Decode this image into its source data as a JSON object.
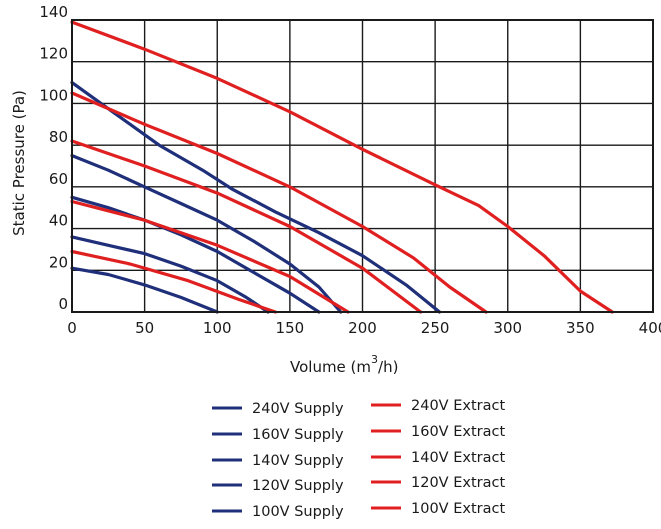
{
  "chart_data": {
    "type": "line",
    "xlabel": "Volume (m",
    "xlabel_sup": "3",
    "xlabel_suffix": "/h)",
    "ylabel": "Static Pressure (Pa)",
    "xlim": [
      0,
      400
    ],
    "ylim": [
      0,
      140
    ],
    "xticks": [
      0,
      50,
      100,
      150,
      200,
      250,
      300,
      350,
      400
    ],
    "yticks": [
      0,
      20,
      40,
      60,
      80,
      100,
      120,
      140
    ],
    "grid": true,
    "legend_position": "bottom",
    "colors": {
      "supply": "#1f2f7a",
      "extract": "#e02020"
    },
    "series": [
      {
        "name": "240V Supply",
        "group": "supply",
        "points": [
          [
            0,
            110
          ],
          [
            30,
            95
          ],
          [
            60,
            80
          ],
          [
            90,
            68
          ],
          [
            110,
            59
          ],
          [
            140,
            48
          ],
          [
            170,
            38
          ],
          [
            200,
            27
          ],
          [
            230,
            13
          ],
          [
            253,
            0
          ]
        ]
      },
      {
        "name": "160V Supply",
        "group": "supply",
        "points": [
          [
            0,
            75
          ],
          [
            25,
            68
          ],
          [
            50,
            60
          ],
          [
            75,
            52
          ],
          [
            100,
            44
          ],
          [
            125,
            34
          ],
          [
            150,
            23
          ],
          [
            170,
            12
          ],
          [
            185,
            0
          ]
        ]
      },
      {
        "name": "140V Supply",
        "group": "supply",
        "points": [
          [
            0,
            55
          ],
          [
            25,
            50
          ],
          [
            50,
            44
          ],
          [
            75,
            37
          ],
          [
            100,
            29
          ],
          [
            125,
            19
          ],
          [
            150,
            9
          ],
          [
            170,
            0
          ]
        ]
      },
      {
        "name": "120V Supply",
        "group": "supply",
        "points": [
          [
            0,
            36
          ],
          [
            25,
            32
          ],
          [
            50,
            28
          ],
          [
            75,
            22
          ],
          [
            100,
            15
          ],
          [
            120,
            7
          ],
          [
            135,
            0
          ]
        ]
      },
      {
        "name": "100V Supply",
        "group": "supply",
        "points": [
          [
            0,
            21
          ],
          [
            25,
            18
          ],
          [
            50,
            13
          ],
          [
            75,
            7
          ],
          [
            100,
            0
          ]
        ]
      },
      {
        "name": "240V Extract",
        "group": "extract",
        "points": [
          [
            0,
            139
          ],
          [
            50,
            126
          ],
          [
            100,
            112
          ],
          [
            150,
            96
          ],
          [
            200,
            78
          ],
          [
            250,
            61
          ],
          [
            280,
            51
          ],
          [
            300,
            41
          ],
          [
            325,
            27
          ],
          [
            350,
            10
          ],
          [
            372,
            0
          ]
        ]
      },
      {
        "name": "160V Extract",
        "group": "extract",
        "points": [
          [
            0,
            105
          ],
          [
            50,
            90
          ],
          [
            100,
            76
          ],
          [
            150,
            60
          ],
          [
            200,
            41
          ],
          [
            235,
            26
          ],
          [
            260,
            12
          ],
          [
            285,
            0
          ]
        ]
      },
      {
        "name": "140V Extract",
        "group": "extract",
        "points": [
          [
            0,
            82
          ],
          [
            50,
            70
          ],
          [
            100,
            57
          ],
          [
            150,
            41
          ],
          [
            200,
            21
          ],
          [
            240,
            0
          ]
        ]
      },
      {
        "name": "120V Extract",
        "group": "extract",
        "points": [
          [
            0,
            53
          ],
          [
            50,
            44
          ],
          [
            100,
            32
          ],
          [
            150,
            17
          ],
          [
            190,
            0
          ]
        ]
      },
      {
        "name": "100V Extract",
        "group": "extract",
        "points": [
          [
            0,
            29
          ],
          [
            40,
            23
          ],
          [
            80,
            15
          ],
          [
            115,
            6
          ],
          [
            140,
            0
          ]
        ]
      }
    ]
  },
  "legend": {
    "supply": [
      "240V Supply",
      "160V Supply",
      "140V Supply",
      "120V Supply",
      "100V Supply"
    ],
    "extract": [
      "240V Extract",
      "160V Extract",
      "140V Extract",
      "120V Extract",
      "100V Extract"
    ]
  }
}
